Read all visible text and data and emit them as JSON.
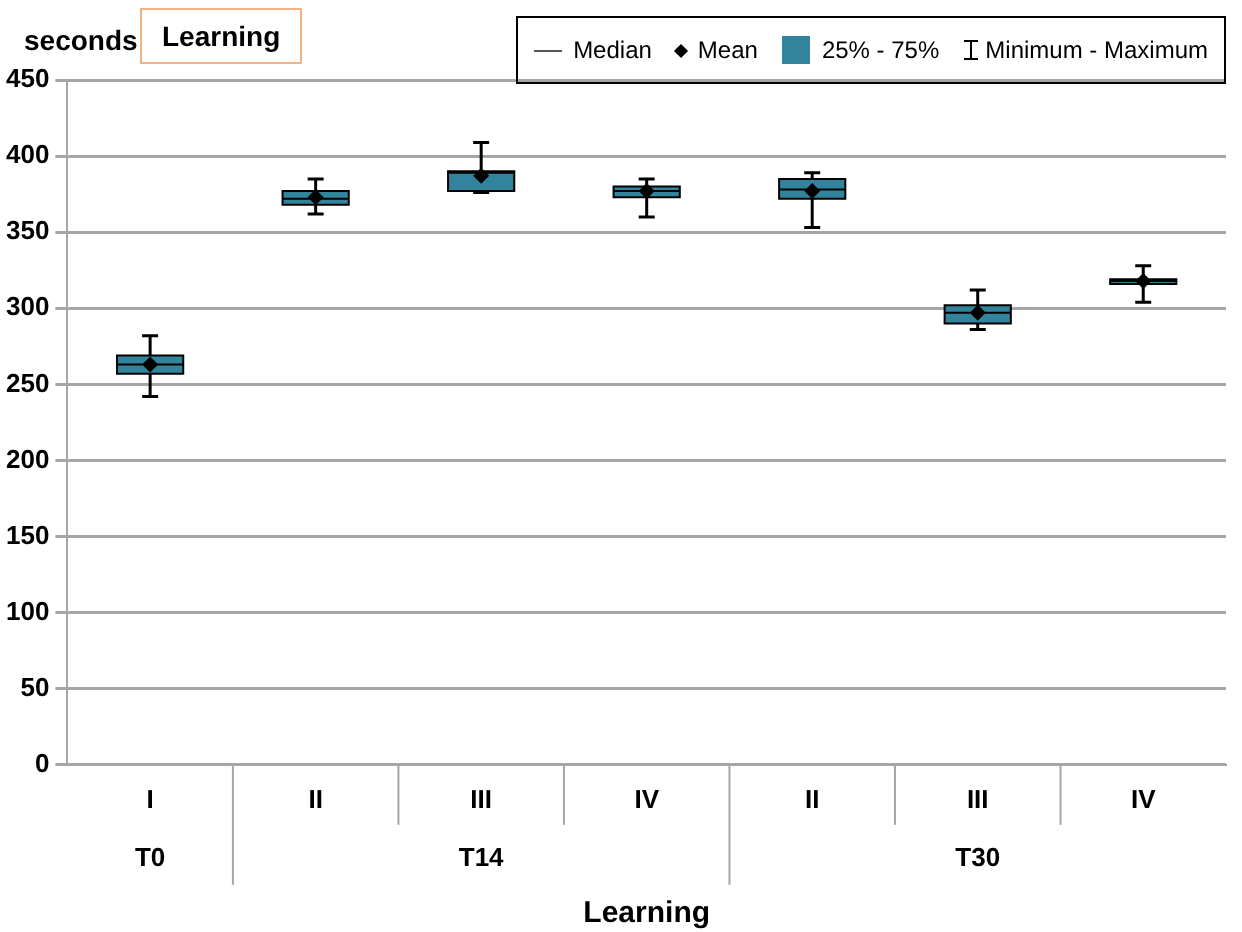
{
  "chart_data": {
    "type": "box",
    "title": "Learning",
    "ylabel": "seconds",
    "xlabel": "Learning",
    "categories": [
      "I",
      "II",
      "III",
      "IV",
      "II",
      "III",
      "IV"
    ],
    "series": [
      {
        "name": "25%  - 75%",
        "color": "#31849b",
        "boxes": [
          {
            "low": 242,
            "q1": 257,
            "median": 263,
            "q3": 269,
            "high": 282,
            "mean": 263
          },
          {
            "low": 362,
            "q1": 368,
            "median": 372,
            "q3": 377,
            "high": 385,
            "mean": 373
          },
          {
            "low": 376,
            "q1": 377,
            "median": 389,
            "q3": 390,
            "high": 409,
            "mean": 387
          },
          {
            "low": 360,
            "q1": 373,
            "median": 377,
            "q3": 380,
            "high": 385,
            "mean": 377
          },
          {
            "low": 353,
            "q1": 372,
            "median": 378,
            "q3": 385,
            "high": 389,
            "mean": 377
          },
          {
            "low": 286,
            "q1": 290,
            "median": 297,
            "q3": 302,
            "high": 312,
            "mean": 297
          },
          {
            "low": 304,
            "q1": 316,
            "median": 318,
            "q3": 319,
            "high": 328,
            "mean": 318
          }
        ]
      }
    ],
    "annotations": [
      "Median",
      "Mean",
      "Minimum - Maximum",
      "T0",
      "T14",
      "T30"
    ],
    "ylim": [
      0,
      450
    ],
    "yticks": [
      0,
      50,
      100,
      150,
      200,
      250,
      300,
      350,
      400,
      450
    ],
    "grid": "y",
    "legend": "top right",
    "marker": "diamond"
  }
}
